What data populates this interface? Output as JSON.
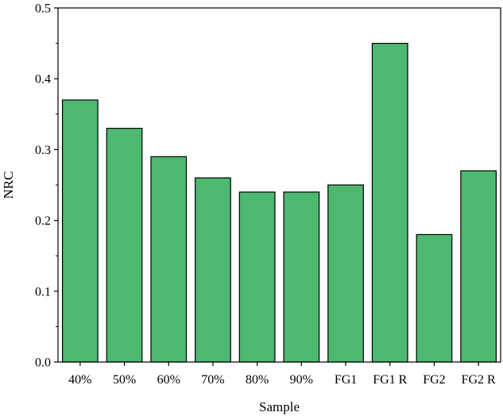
{
  "chart_data": {
    "type": "bar",
    "xlabel": "Sample",
    "ylabel": "NRC",
    "categories": [
      "40%",
      "50%",
      "60%",
      "70%",
      "80%",
      "90%",
      "FG1",
      "FG1 R",
      "FG2",
      "FG2 R"
    ],
    "values": [
      0.37,
      0.33,
      0.29,
      0.26,
      0.24,
      0.24,
      0.25,
      0.45,
      0.18,
      0.27
    ],
    "ylim": [
      0,
      0.5
    ],
    "yticks": [
      "0.0",
      "0.1",
      "0.2",
      "0.3",
      "0.4",
      "0.5"
    ],
    "grid": false,
    "legend": "none",
    "bar_color": "#4db870"
  }
}
